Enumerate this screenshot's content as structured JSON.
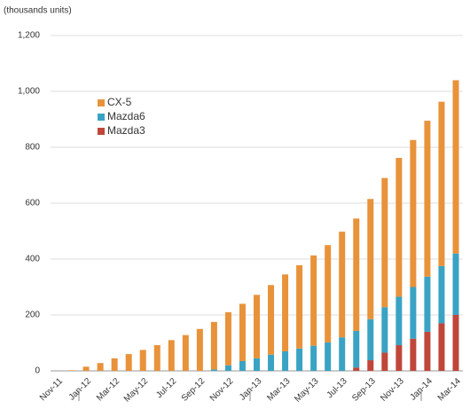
{
  "chart_data": {
    "type": "bar",
    "stacked": true,
    "y_label": "(thousands units)",
    "categories": [
      "Nov-11",
      null,
      "Jan-12",
      null,
      "Mar-12",
      null,
      "May-12",
      null,
      "Jul-12",
      null,
      "Sep-12",
      null,
      "Nov-12",
      null,
      "Jan-13",
      null,
      "Mar-13",
      null,
      "May-13",
      null,
      "Jul-13",
      null,
      "Sep-13",
      null,
      "Nov-13",
      null,
      "Jan-14",
      null,
      "Mar-14"
    ],
    "series": [
      {
        "name": "Mazda3",
        "color": "#c0463a",
        "values": [
          0,
          0,
          0,
          0,
          0,
          0,
          0,
          0,
          0,
          0,
          0,
          0,
          0,
          0,
          0,
          0,
          0,
          0,
          0,
          0,
          0,
          12,
          38,
          65,
          92,
          115,
          140,
          170,
          200
        ]
      },
      {
        "name": "Mazda6",
        "color": "#3aa3c4",
        "values": [
          0,
          0,
          0,
          0,
          0,
          0,
          0,
          0,
          0,
          0,
          0,
          5,
          20,
          35,
          45,
          58,
          70,
          80,
          90,
          102,
          120,
          131,
          147,
          163,
          173,
          185,
          197,
          205,
          220
        ]
      },
      {
        "name": "CX-5",
        "color": "#e8923a",
        "values": [
          0,
          2,
          15,
          28,
          45,
          60,
          75,
          92,
          110,
          128,
          150,
          170,
          190,
          205,
          227,
          249,
          275,
          298,
          323,
          348,
          378,
          402,
          430,
          462,
          497,
          526,
          558,
          588,
          620
        ]
      }
    ],
    "ylim": [
      0,
      1200
    ],
    "yticks": [
      0,
      200,
      400,
      600,
      800,
      {
        "value": 1000,
        "label": "1,000"
      },
      {
        "value": 1200,
        "label": "1,200"
      }
    ],
    "grid": true,
    "legend": "upper left"
  }
}
